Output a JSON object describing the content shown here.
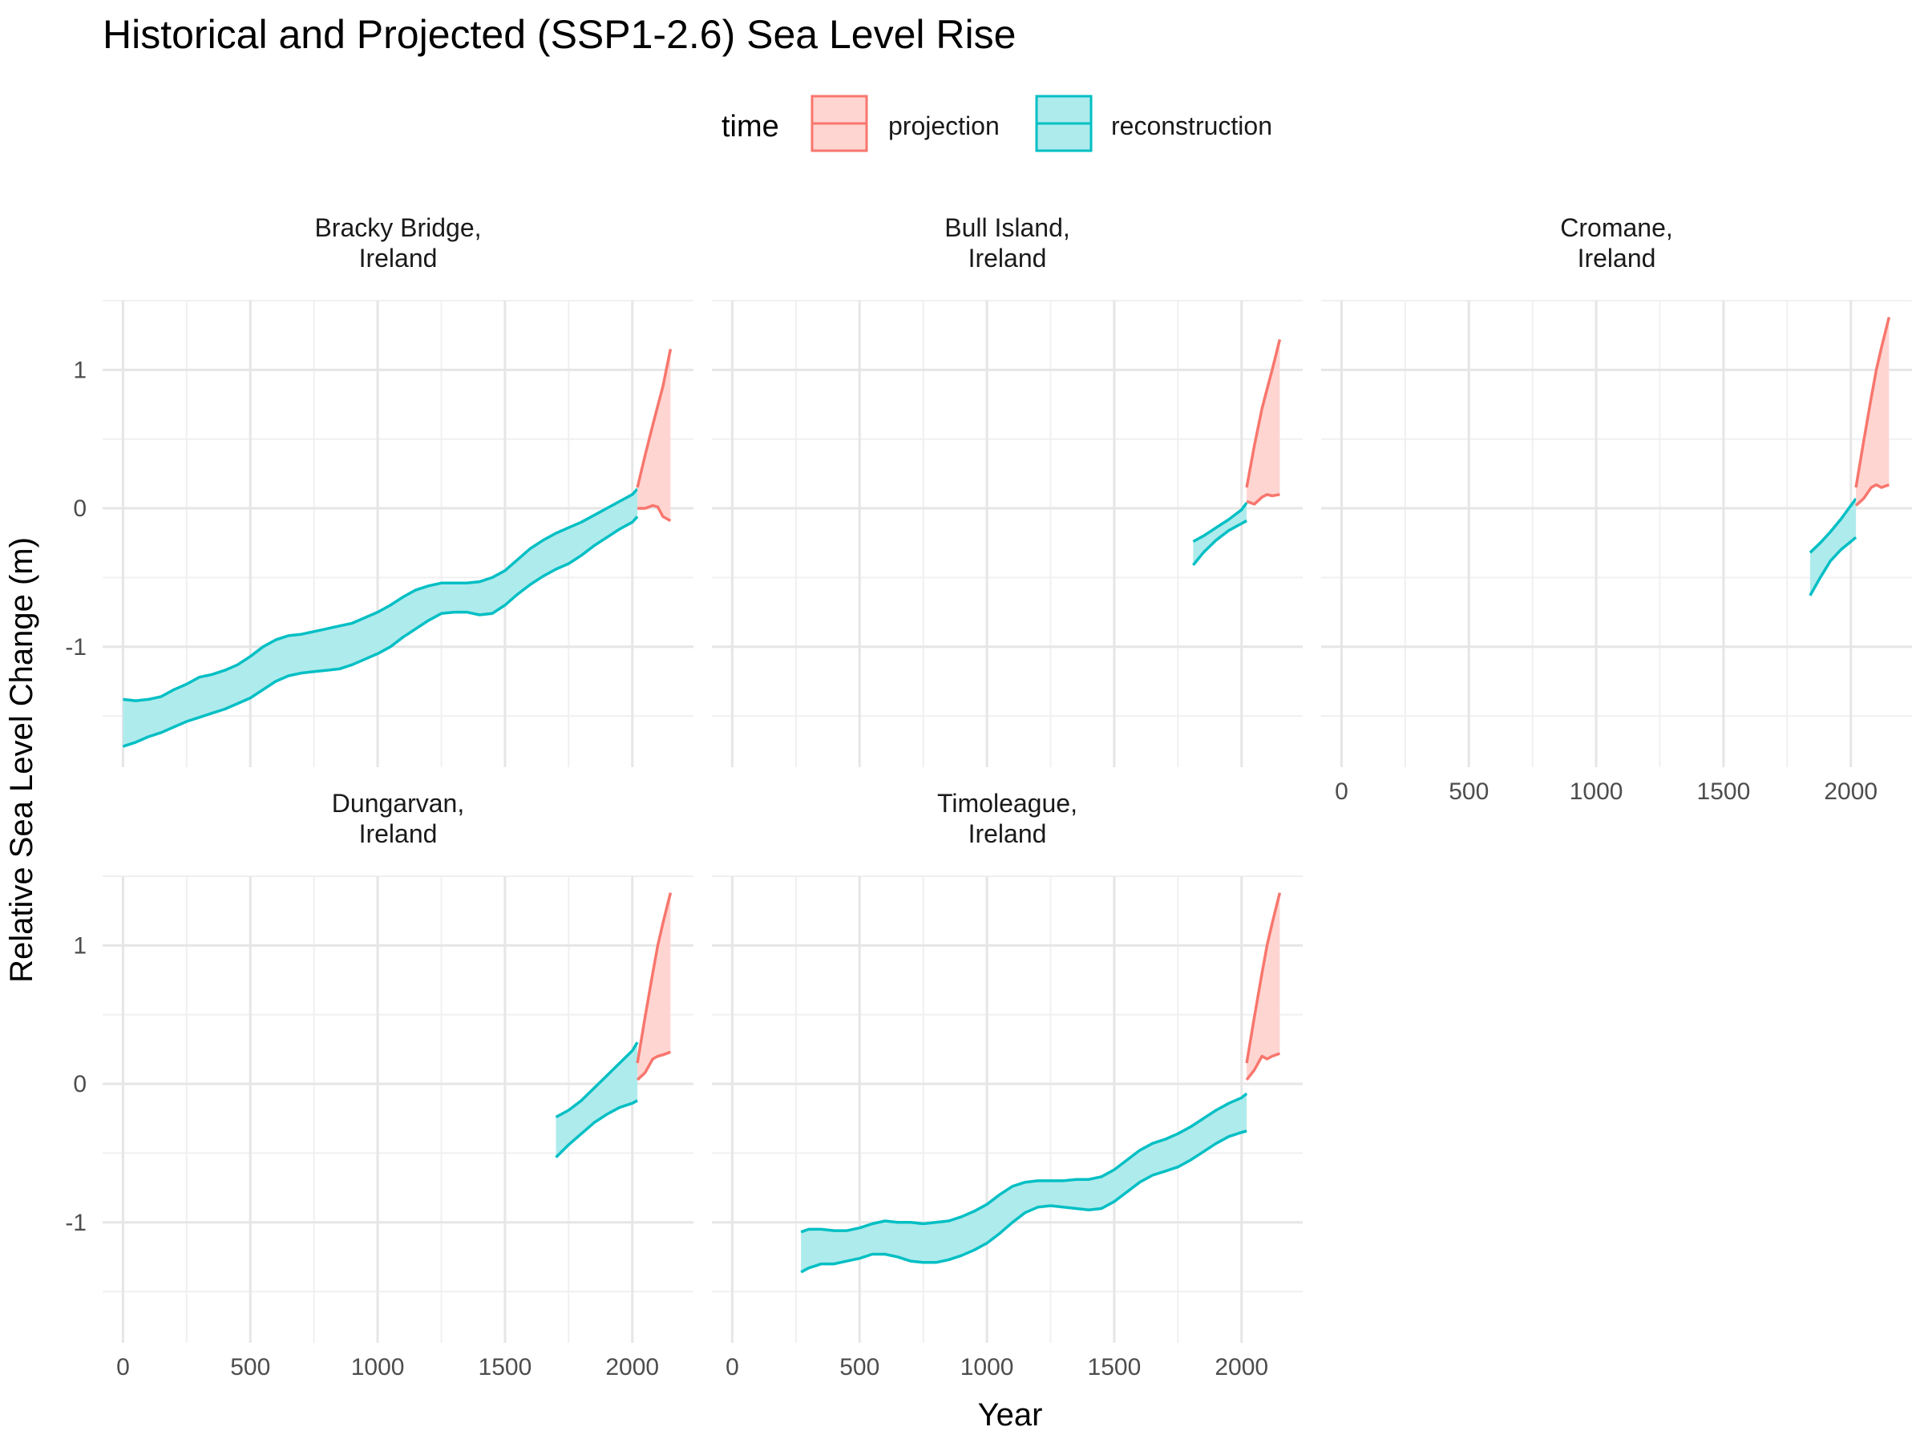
{
  "title": "Historical and Projected (SSP1-2.6) Sea Level Rise",
  "legend": {
    "title": "time",
    "items": [
      {
        "key": "projection",
        "label": "projection"
      },
      {
        "key": "reconstruction",
        "label": "reconstruction"
      }
    ]
  },
  "chart_data": {
    "type": "line",
    "subtype": "faceted line with uncertainty ribbons",
    "xlabel": "Year",
    "ylabel": "Relative Sea Level Change (m)",
    "xlim": [
      -80,
      2240
    ],
    "ylim": [
      -1.87,
      1.5
    ],
    "x_ticks": [
      0,
      500,
      1000,
      1500,
      2000
    ],
    "x_tick_labels": [
      "0",
      "500",
      "1000",
      "1500",
      "2000"
    ],
    "y_ticks": [
      -1,
      0,
      1
    ],
    "y_tick_labels": [
      "-1",
      "0",
      "1"
    ],
    "grid": true,
    "legend_position": "top",
    "colors": {
      "projection": "#F8766D",
      "reconstruction": "#00BFC4",
      "projection_fill": "#FFD5D2",
      "reconstruction_fill": "#AEEBEC"
    },
    "panels": [
      {
        "strip": [
          "Bracky Bridge,",
          "Ireland"
        ],
        "series": [
          {
            "name": "reconstruction",
            "x": [
              0,
              50,
              100,
              150,
              200,
              250,
              300,
              350,
              400,
              450,
              500,
              550,
              600,
              650,
              700,
              750,
              800,
              850,
              900,
              950,
              1000,
              1050,
              1100,
              1150,
              1200,
              1250,
              1300,
              1350,
              1400,
              1450,
              1500,
              1550,
              1600,
              1650,
              1700,
              1750,
              1800,
              1850,
              1900,
              1950,
              2000,
              2020
            ],
            "upper": [
              -1.38,
              -1.39,
              -1.38,
              -1.36,
              -1.31,
              -1.27,
              -1.22,
              -1.2,
              -1.17,
              -1.13,
              -1.07,
              -1.0,
              -0.95,
              -0.92,
              -0.91,
              -0.89,
              -0.87,
              -0.85,
              -0.83,
              -0.79,
              -0.75,
              -0.7,
              -0.64,
              -0.59,
              -0.56,
              -0.54,
              -0.54,
              -0.54,
              -0.53,
              -0.5,
              -0.45,
              -0.37,
              -0.29,
              -0.23,
              -0.18,
              -0.14,
              -0.1,
              -0.05,
              0.0,
              0.05,
              0.1,
              0.14
            ],
            "lower": [
              -1.72,
              -1.69,
              -1.65,
              -1.62,
              -1.58,
              -1.54,
              -1.51,
              -1.48,
              -1.45,
              -1.41,
              -1.37,
              -1.31,
              -1.25,
              -1.21,
              -1.19,
              -1.18,
              -1.17,
              -1.16,
              -1.13,
              -1.09,
              -1.05,
              -1.0,
              -0.93,
              -0.87,
              -0.81,
              -0.76,
              -0.75,
              -0.75,
              -0.77,
              -0.76,
              -0.7,
              -0.62,
              -0.55,
              -0.49,
              -0.44,
              -0.4,
              -0.34,
              -0.27,
              -0.21,
              -0.15,
              -0.1,
              -0.06
            ]
          },
          {
            "name": "projection",
            "x": [
              2020,
              2050,
              2080,
              2100,
              2120,
              2150
            ],
            "upper": [
              0.15,
              0.38,
              0.6,
              0.74,
              0.88,
              1.15
            ],
            "lower": [
              0.0,
              0.0,
              0.02,
              0.01,
              -0.06,
              -0.09
            ]
          }
        ]
      },
      {
        "strip": [
          "Bull Island,",
          "Ireland"
        ],
        "series": [
          {
            "name": "reconstruction",
            "x": [
              1810,
              1850,
              1900,
              1950,
              2000,
              2020
            ],
            "upper": [
              -0.24,
              -0.2,
              -0.14,
              -0.08,
              -0.01,
              0.04
            ],
            "lower": [
              -0.41,
              -0.32,
              -0.23,
              -0.16,
              -0.11,
              -0.09
            ]
          },
          {
            "name": "projection",
            "x": [
              2020,
              2050,
              2080,
              2100,
              2120,
              2150
            ],
            "upper": [
              0.15,
              0.45,
              0.72,
              0.86,
              1.0,
              1.22
            ],
            "lower": [
              0.05,
              0.03,
              0.08,
              0.1,
              0.09,
              0.1
            ]
          }
        ]
      },
      {
        "strip": [
          "Cromane,",
          "Ireland"
        ],
        "series": [
          {
            "name": "reconstruction",
            "x": [
              1840,
              1880,
              1920,
              1960,
              2000,
              2020
            ],
            "upper": [
              -0.32,
              -0.25,
              -0.17,
              -0.08,
              0.02,
              0.07
            ],
            "lower": [
              -0.63,
              -0.5,
              -0.38,
              -0.3,
              -0.24,
              -0.21
            ]
          },
          {
            "name": "projection",
            "x": [
              2020,
              2050,
              2080,
              2100,
              2120,
              2150
            ],
            "upper": [
              0.15,
              0.48,
              0.8,
              1.0,
              1.16,
              1.38
            ],
            "lower": [
              0.02,
              0.07,
              0.15,
              0.17,
              0.15,
              0.17
            ]
          }
        ]
      },
      {
        "strip": [
          "Dungarvan,",
          "Ireland"
        ],
        "series": [
          {
            "name": "reconstruction",
            "x": [
              1700,
              1750,
              1800,
              1850,
              1900,
              1950,
              2000,
              2020
            ],
            "upper": [
              -0.24,
              -0.19,
              -0.12,
              -0.03,
              0.06,
              0.15,
              0.24,
              0.3
            ],
            "lower": [
              -0.53,
              -0.44,
              -0.36,
              -0.28,
              -0.22,
              -0.17,
              -0.14,
              -0.12
            ]
          },
          {
            "name": "projection",
            "x": [
              2020,
              2050,
              2080,
              2100,
              2120,
              2150
            ],
            "upper": [
              0.15,
              0.48,
              0.8,
              1.0,
              1.16,
              1.38
            ],
            "lower": [
              0.03,
              0.08,
              0.18,
              0.2,
              0.21,
              0.23
            ]
          }
        ]
      },
      {
        "strip": [
          "Timoleague,",
          "Ireland"
        ],
        "series": [
          {
            "name": "reconstruction",
            "x": [
              270,
              300,
              350,
              400,
              450,
              500,
              550,
              600,
              650,
              700,
              750,
              800,
              850,
              900,
              950,
              1000,
              1050,
              1100,
              1150,
              1200,
              1250,
              1300,
              1350,
              1400,
              1450,
              1500,
              1550,
              1600,
              1650,
              1700,
              1750,
              1800,
              1850,
              1900,
              1950,
              2000,
              2020
            ],
            "upper": [
              -1.07,
              -1.05,
              -1.05,
              -1.06,
              -1.06,
              -1.04,
              -1.01,
              -0.99,
              -1.0,
              -1.0,
              -1.01,
              -1.0,
              -0.99,
              -0.96,
              -0.92,
              -0.87,
              -0.8,
              -0.74,
              -0.71,
              -0.7,
              -0.7,
              -0.7,
              -0.69,
              -0.69,
              -0.67,
              -0.62,
              -0.55,
              -0.48,
              -0.43,
              -0.4,
              -0.36,
              -0.31,
              -0.25,
              -0.19,
              -0.14,
              -0.1,
              -0.07
            ],
            "lower": [
              -1.36,
              -1.33,
              -1.3,
              -1.3,
              -1.28,
              -1.26,
              -1.23,
              -1.23,
              -1.25,
              -1.28,
              -1.29,
              -1.29,
              -1.27,
              -1.24,
              -1.2,
              -1.15,
              -1.08,
              -1.0,
              -0.93,
              -0.89,
              -0.88,
              -0.89,
              -0.9,
              -0.91,
              -0.9,
              -0.85,
              -0.78,
              -0.71,
              -0.66,
              -0.63,
              -0.6,
              -0.55,
              -0.49,
              -0.43,
              -0.38,
              -0.35,
              -0.34
            ]
          },
          {
            "name": "projection",
            "x": [
              2020,
              2050,
              2080,
              2100,
              2120,
              2150
            ],
            "upper": [
              0.15,
              0.48,
              0.8,
              1.0,
              1.16,
              1.38
            ],
            "lower": [
              0.03,
              0.1,
              0.2,
              0.18,
              0.2,
              0.22
            ]
          }
        ]
      }
    ]
  }
}
